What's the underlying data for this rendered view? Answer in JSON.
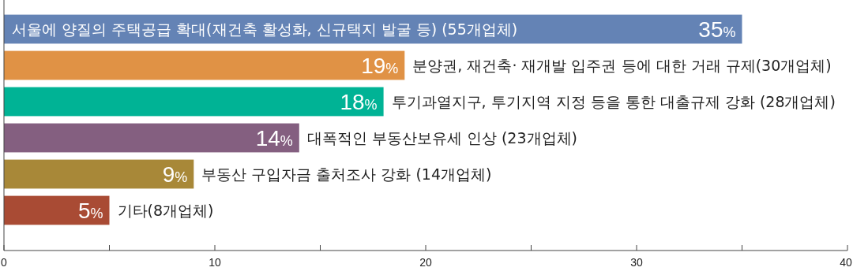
{
  "chart_data": {
    "type": "bar",
    "orientation": "horizontal",
    "categories": [
      "서울에 양질의 주택공급 확대(재건축 활성화, 신규택지 발굴 등)  (55개업체)",
      "분양권, 재건축· 재개발 입주권 등에 대한 거래 규제(30개업체)",
      "투기과열지구, 투기지역 지정 등을 통한 대출규제 강화 (28개업체)",
      "대폭적인 부동산보유세 인상 (23개업체)",
      "부동산 구입자금 출처조사 강화 (14개업체)",
      "기타(8개업체)"
    ],
    "values": [
      35,
      19,
      18,
      14,
      9,
      5
    ],
    "colors": [
      "#6483b5",
      "#e09245",
      "#00b395",
      "#845f80",
      "#a88838",
      "#a94b34"
    ],
    "value_labels": [
      "35%",
      "19%",
      "18%",
      "14%",
      "9%",
      "5%"
    ],
    "xlim": [
      0,
      40
    ],
    "xticks": [
      0,
      {
        "value": 5,
        "label": null
      },
      10,
      {
        "value": 15,
        "label": null
      },
      20,
      {
        "value": 25,
        "label": null
      },
      30,
      {
        "value": 35,
        "label": null
      },
      40
    ]
  }
}
